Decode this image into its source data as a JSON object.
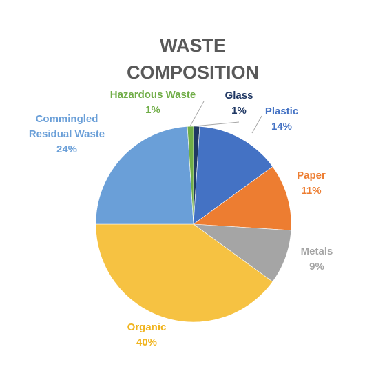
{
  "chart_data": {
    "type": "pie",
    "title": [
      "WASTE",
      "COMPOSITION"
    ],
    "start_angle_deg": 0,
    "direction": "clockwise",
    "slices": [
      {
        "name": "Glass",
        "value": 1,
        "label": "1%",
        "color": "#203864",
        "label_color": "#203864"
      },
      {
        "name": "Plastic",
        "value": 14,
        "label": "14%",
        "color": "#4472C4",
        "label_color": "#4472C4"
      },
      {
        "name": "Paper",
        "value": 11,
        "label": "11%",
        "color": "#ED7D31",
        "label_color": "#ED7D31"
      },
      {
        "name": "Metals",
        "value": 9,
        "label": "9%",
        "color": "#A5A5A5",
        "label_color": "#A5A5A5"
      },
      {
        "name": "Organic",
        "value": 40,
        "label": "40%",
        "color": "#F6C242",
        "label_color": "#F0B41E"
      },
      {
        "name": [
          "Commingled",
          "Residual Waste"
        ],
        "value": 24,
        "label": "24%",
        "color": "#6A9FD8",
        "label_color": "#6A9FD8"
      },
      {
        "name": "Hazardous Waste",
        "value": 1,
        "label": "1%",
        "color": "#70AD47",
        "label_color": "#70AD47"
      }
    ]
  }
}
